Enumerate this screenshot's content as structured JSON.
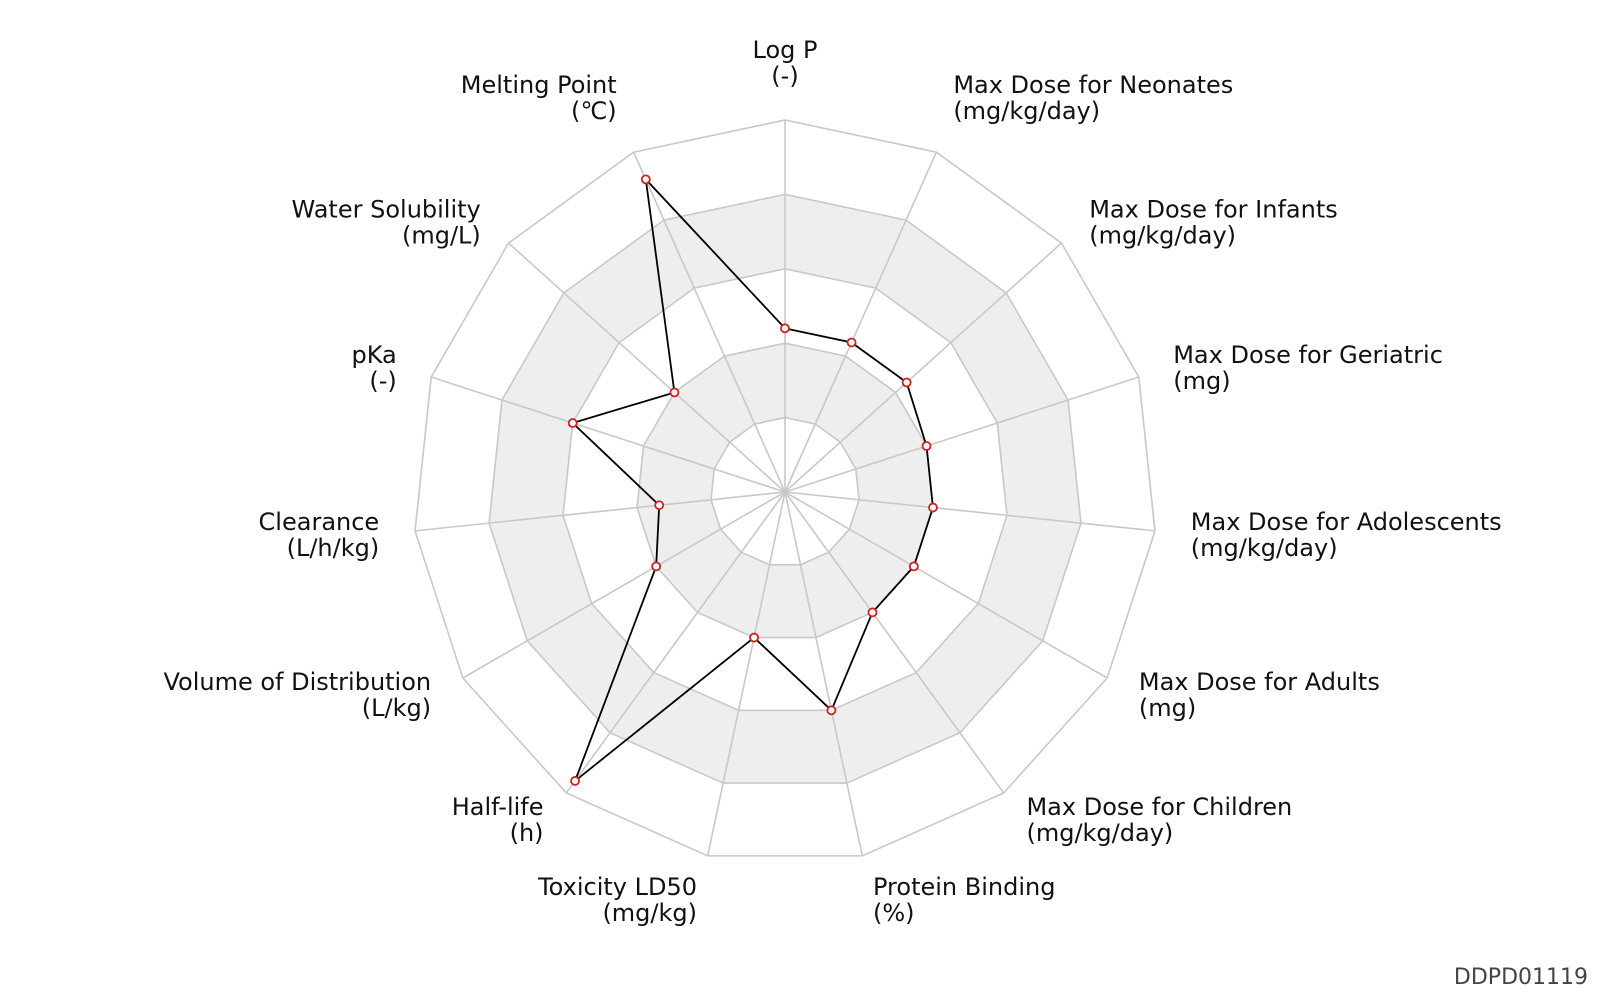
{
  "chart_data": {
    "type": "radar",
    "title": "",
    "scale": [
      0,
      5
    ],
    "rings": 5,
    "grid": true,
    "shaded_bands": [
      [
        1,
        2
      ],
      [
        3,
        4
      ]
    ],
    "axes": [
      {
        "name": "Log P",
        "unit": "(-)",
        "value": 2.2
      },
      {
        "name": "Max Dose for Neonates",
        "unit": "(mg/kg/day)",
        "value": 2.2
      },
      {
        "name": "Max Dose for Infants",
        "unit": "(mg/kg/day)",
        "value": 2.2
      },
      {
        "name": "Max Dose for Geriatric",
        "unit": "(mg)",
        "value": 2.0
      },
      {
        "name": "Max Dose for Adolescents",
        "unit": "(mg/kg/day)",
        "value": 2.0
      },
      {
        "name": "Max Dose for Adults",
        "unit": "(mg)",
        "value": 2.0
      },
      {
        "name": "Max Dose for Children",
        "unit": "(mg/kg/day)",
        "value": 2.0
      },
      {
        "name": "Protein Binding",
        "unit": "(%)",
        "value": 3.0
      },
      {
        "name": "Toxicity LD50",
        "unit": "(mg/kg)",
        "value": 2.0
      },
      {
        "name": "Half-life",
        "unit": "(h)",
        "value": 4.8
      },
      {
        "name": "Volume of Distribution",
        "unit": "(L/kg)",
        "value": 2.0
      },
      {
        "name": "Clearance",
        "unit": "(L/h/kg)",
        "value": 1.7
      },
      {
        "name": "pKa",
        "unit": "(-)",
        "value": 3.0
      },
      {
        "name": "Water Solubility",
        "unit": "(mg/L)",
        "value": 2.0
      },
      {
        "name": "Melting Point",
        "unit": "(℃)",
        "value": 4.6
      }
    ],
    "colors": {
      "grid_line": "#c8c8c8",
      "band_fill": "#eeeeee",
      "series_line": "#000000",
      "marker_stroke": "#cc2222",
      "marker_fill": "#ffffff"
    }
  },
  "footer": {
    "id": "DDPD01119"
  }
}
